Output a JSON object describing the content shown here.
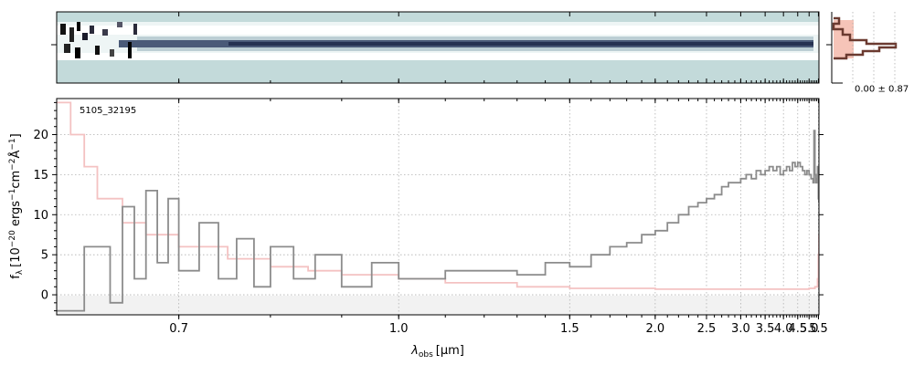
{
  "chart_data": {
    "type": "line",
    "annotation": "5105_32195",
    "xlabel_main": "λ",
    "xlabel_sub": "obs",
    "xlabel_unit": "[μm]",
    "ylabel_main": "f",
    "ylabel_sub": "λ",
    "ylabel_unit": "[10",
    "ylabel_exp1": "−20",
    "ylabel_mid1": " ergs",
    "ylabel_exp2": "−1",
    "ylabel_mid2": "cm",
    "ylabel_exp3": "−2",
    "ylabel_mid3": "Å",
    "ylabel_exp4": "−1",
    "ylabel_end": "]",
    "x_scale": "reciprocal",
    "xlim": [
      0.6,
      5.53
    ],
    "ylim": [
      -2.5,
      24.5
    ],
    "x_ticks": [
      0.7,
      1.0,
      1.5,
      2.0,
      2.5,
      3.0,
      3.5,
      4.0,
      4.5,
      5.0,
      5.5
    ],
    "x_tick_labels": [
      "0.7",
      "1.0",
      "1.5",
      "2.0",
      "2.5",
      "3.0",
      "3.5",
      "4.0",
      "4.5",
      "5.0",
      "5.5"
    ],
    "y_ticks": [
      0,
      5,
      10,
      15,
      20
    ],
    "y_tick_labels": [
      "0",
      "5",
      "10",
      "15",
      "20"
    ],
    "grid": true,
    "series": [
      {
        "color": "#8c8c8c",
        "style": "steps",
        "x": [
          0.6,
          0.62,
          0.64,
          0.65,
          0.66,
          0.67,
          0.68,
          0.69,
          0.7,
          0.72,
          0.74,
          0.76,
          0.78,
          0.8,
          0.83,
          0.86,
          0.9,
          0.95,
          1.0,
          1.1,
          1.2,
          1.3,
          1.4,
          1.5,
          1.6,
          1.7,
          1.8,
          1.9,
          2.0,
          2.1,
          2.2,
          2.3,
          2.4,
          2.5,
          2.6,
          2.7,
          2.8,
          2.9,
          3.0,
          3.1,
          3.2,
          3.3,
          3.4,
          3.5,
          3.6,
          3.7,
          3.8,
          3.9,
          4.0,
          4.1,
          4.2,
          4.3,
          4.4,
          4.5,
          4.6,
          4.7,
          4.8,
          4.9,
          5.0,
          5.1,
          5.2,
          5.25,
          5.3,
          5.35,
          5.4,
          5.45,
          5.5,
          5.53
        ],
        "y": [
          -2,
          6,
          -1,
          11,
          2,
          13,
          4,
          12,
          3,
          9,
          2,
          7,
          1,
          6,
          2,
          5,
          1,
          4,
          2,
          3,
          3,
          2.5,
          4,
          3.5,
          5,
          6,
          6.5,
          7.5,
          8,
          9,
          10,
          11,
          11.5,
          12,
          12.5,
          13.5,
          14,
          14,
          14.5,
          15,
          14.5,
          15.5,
          15,
          15.5,
          16,
          15.5,
          16,
          15,
          15.5,
          16,
          15.5,
          16.5,
          16,
          16.5,
          16,
          15.5,
          15,
          15.5,
          15,
          14.5,
          14,
          20.5,
          15,
          14,
          14.5,
          16,
          12,
          11.5
        ]
      },
      {
        "color": "#f4c2c2",
        "style": "steps",
        "x": [
          0.6,
          0.61,
          0.62,
          0.63,
          0.65,
          0.67,
          0.7,
          0.75,
          0.8,
          0.85,
          0.9,
          1.0,
          1.1,
          1.3,
          1.5,
          2.0,
          2.5,
          3.0,
          3.5,
          4.0,
          4.5,
          5.0,
          5.3,
          5.45,
          5.5,
          5.53
        ],
        "y": [
          24,
          20,
          16,
          12,
          9,
          7.5,
          6,
          4.5,
          3.5,
          3,
          2.5,
          2,
          1.5,
          1,
          0.8,
          0.7,
          0.7,
          0.7,
          0.7,
          0.7,
          0.7,
          0.8,
          1,
          2,
          5,
          7.5
        ]
      }
    ],
    "colorbar_label": "0.00 ± 0.87"
  }
}
